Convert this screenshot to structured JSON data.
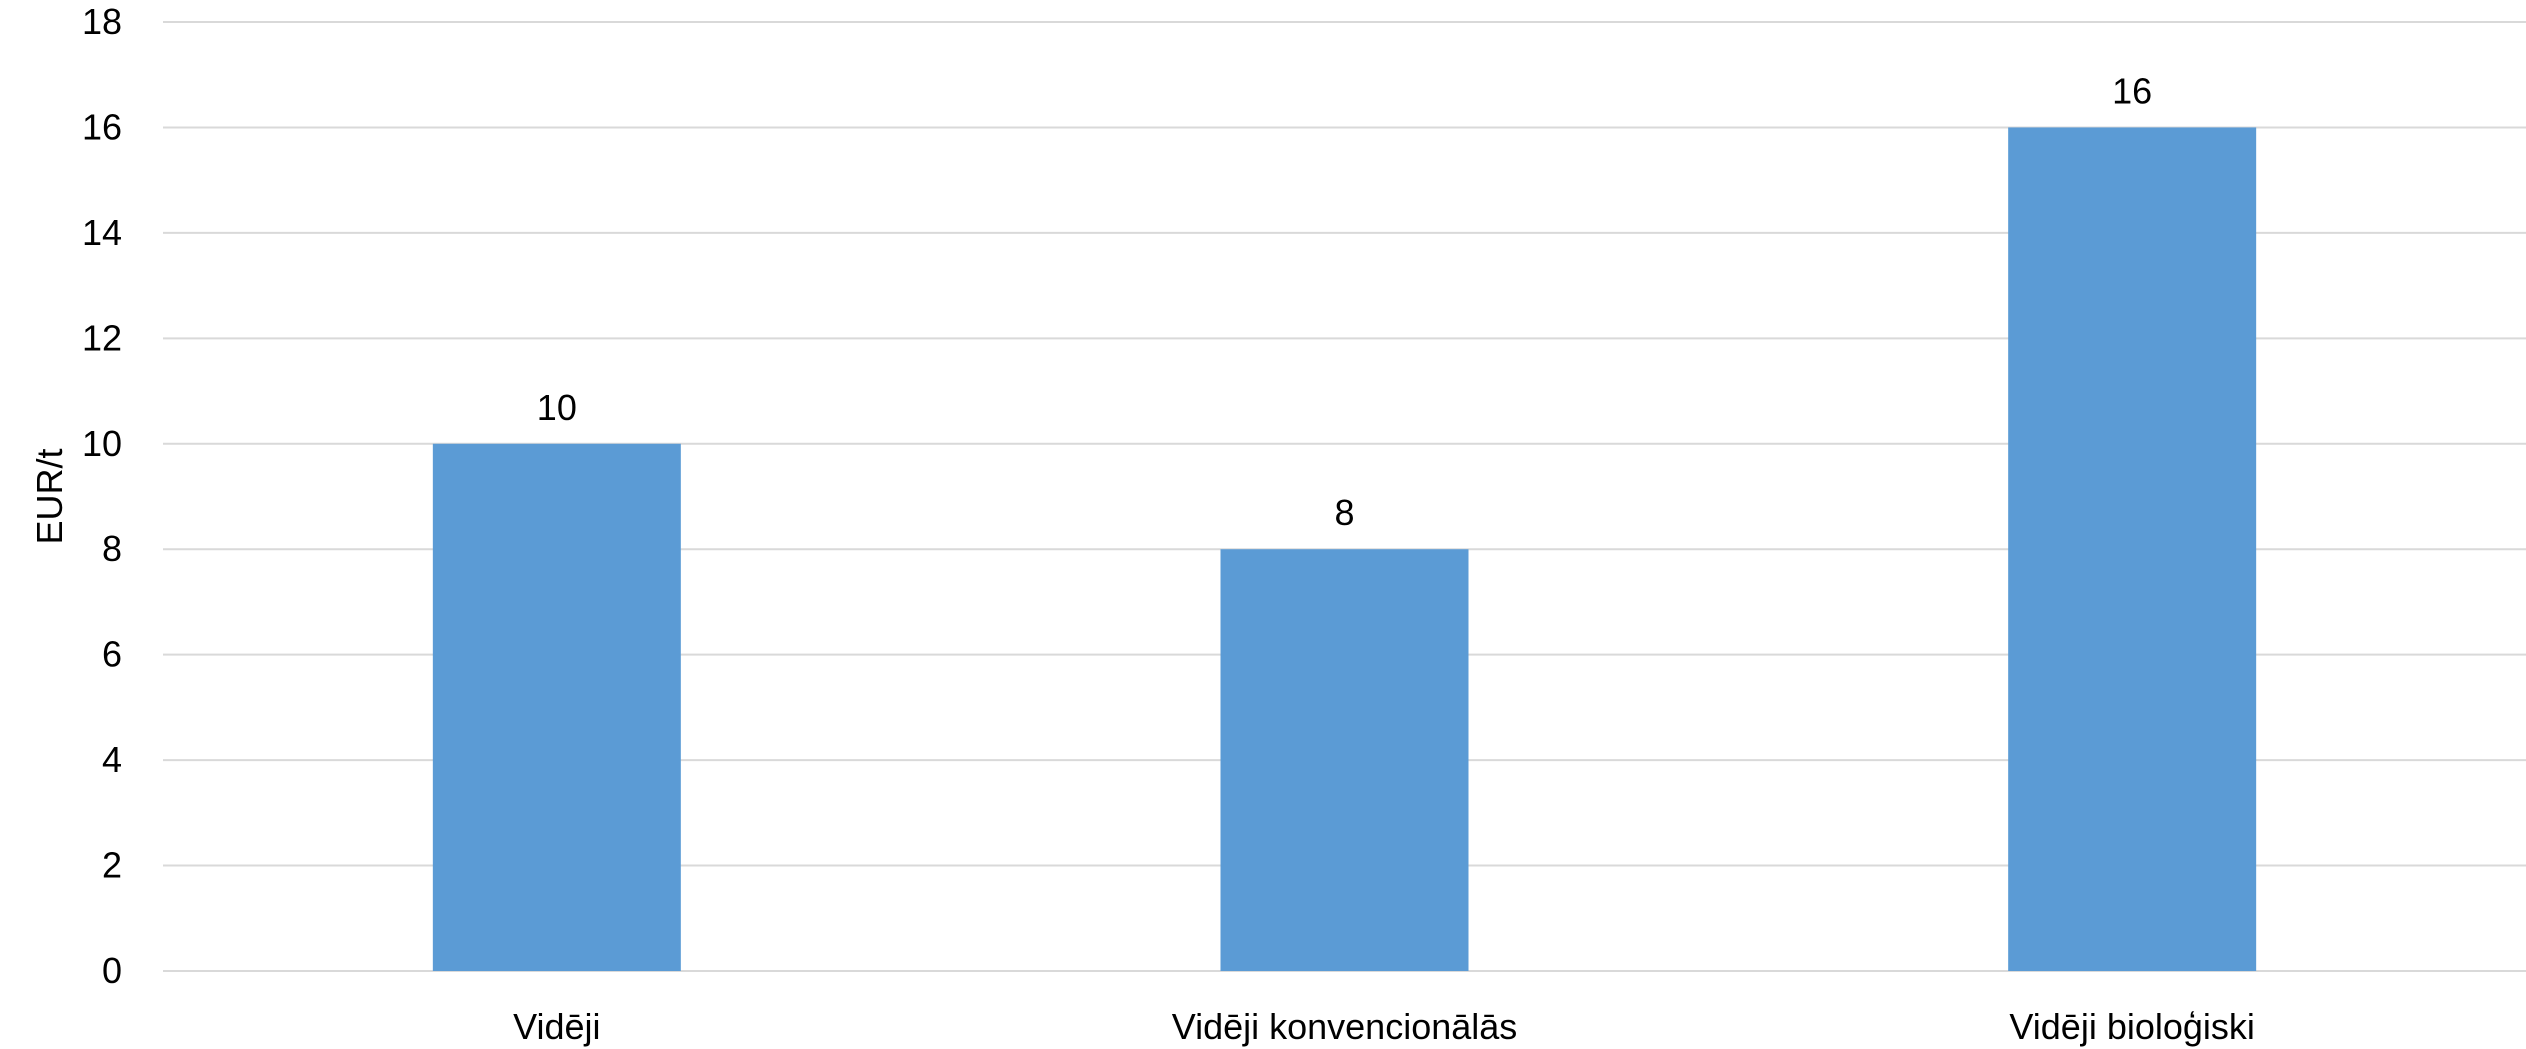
{
  "chart_data": {
    "type": "bar",
    "categories": [
      "Vidēji",
      "Vidēji konvencionālās",
      "Vidēji bioloģiski"
    ],
    "values": [
      10,
      8,
      16
    ],
    "data_labels": [
      "10",
      "8",
      "16"
    ],
    "title": "",
    "xlabel": "",
    "ylabel": "EUR/t",
    "ylim": [
      0,
      18
    ],
    "yticks": [
      0,
      2,
      4,
      6,
      8,
      10,
      12,
      14,
      16,
      18
    ],
    "grid": true,
    "legend": "none",
    "bar_color": "#5B9BD5",
    "grid_color": "#D9D9D9"
  }
}
